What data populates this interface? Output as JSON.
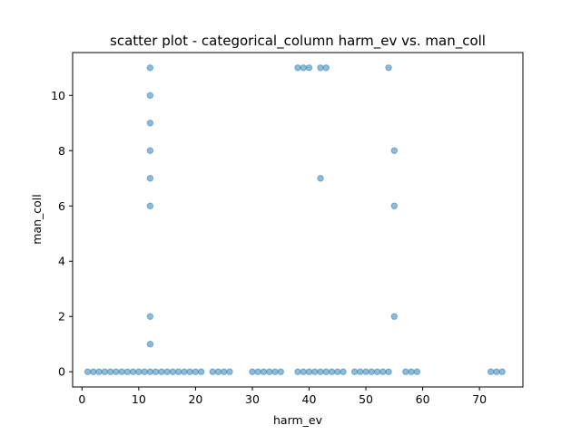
{
  "chart_data": {
    "type": "scatter",
    "title": "scatter plot - categorical_column harm_ev vs. man_coll",
    "xlabel": "harm_ev",
    "ylabel": "man_coll",
    "xlim": [
      -1.65,
      77.65
    ],
    "ylim": [
      -0.55,
      11.55
    ],
    "xticks": [
      0,
      10,
      20,
      30,
      40,
      50,
      60,
      70
    ],
    "yticks": [
      0,
      2,
      4,
      6,
      8,
      10
    ],
    "grid": false,
    "marker_color": "#1f77b4",
    "marker_alpha": 0.5,
    "x": [
      1,
      2,
      3,
      4,
      5,
      6,
      7,
      8,
      9,
      10,
      11,
      12,
      13,
      14,
      15,
      16,
      17,
      18,
      19,
      20,
      21,
      23,
      24,
      25,
      26,
      30,
      31,
      32,
      33,
      34,
      35,
      38,
      39,
      40,
      41,
      42,
      43,
      44,
      45,
      46,
      48,
      49,
      50,
      51,
      52,
      53,
      54,
      57,
      58,
      59,
      72,
      73,
      74,
      12,
      12,
      12,
      12,
      12,
      12,
      12,
      12,
      38,
      39,
      40,
      42,
      43,
      54,
      55,
      55,
      55,
      42
    ],
    "y": [
      0,
      0,
      0,
      0,
      0,
      0,
      0,
      0,
      0,
      0,
      0,
      0,
      0,
      0,
      0,
      0,
      0,
      0,
      0,
      0,
      0,
      0,
      0,
      0,
      0,
      0,
      0,
      0,
      0,
      0,
      0,
      0,
      0,
      0,
      0,
      0,
      0,
      0,
      0,
      0,
      0,
      0,
      0,
      0,
      0,
      0,
      0,
      0,
      0,
      0,
      0,
      0,
      0,
      1,
      2,
      6,
      7,
      8,
      9,
      10,
      11,
      11,
      11,
      11,
      11,
      11,
      11,
      2,
      6,
      8,
      7
    ]
  }
}
